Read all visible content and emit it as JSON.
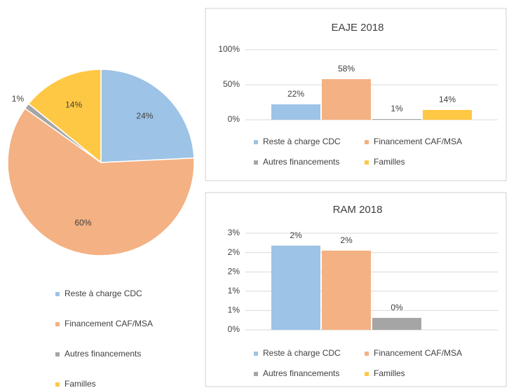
{
  "chart_data": [
    {
      "type": "pie",
      "categories": [
        "Reste à charge CDC",
        "Financement CAF/MSA",
        "Autres financements",
        "Familles"
      ],
      "values": [
        24,
        60,
        1,
        14
      ],
      "value_labels": [
        "24%",
        "60%",
        "1%",
        "14%"
      ],
      "colors": [
        "#9dc3e6",
        "#f4b183",
        "#a5a5a5",
        "#ffc844"
      ],
      "legend": "bottom"
    },
    {
      "type": "bar",
      "title": "EAJE 2018",
      "categories": [
        null
      ],
      "series": [
        {
          "name": "Reste à charge CDC",
          "color": "#9dc3e6",
          "values": [
            22
          ],
          "value_labels": [
            "22%"
          ]
        },
        {
          "name": "Financement CAF/MSA",
          "color": "#f4b183",
          "values": [
            58
          ],
          "value_labels": [
            "58%"
          ]
        },
        {
          "name": "Autres financements",
          "color": "#a5a5a5",
          "values": [
            1
          ],
          "value_labels": [
            "1%"
          ]
        },
        {
          "name": "Familles",
          "color": "#ffc844",
          "values": [
            14
          ],
          "value_labels": [
            "14%"
          ]
        }
      ],
      "ylim": [
        0,
        100
      ],
      "yticks": [
        {
          "value": 0,
          "label": "0%"
        },
        {
          "value": 50,
          "label": "50%"
        },
        {
          "value": 100,
          "label": "100%"
        }
      ],
      "grid": true,
      "legend": "bottom"
    },
    {
      "type": "bar",
      "title": "RAM 2018",
      "categories": [
        null
      ],
      "series": [
        {
          "name": "Reste à charge CDC",
          "color": "#9dc3e6",
          "values": [
            2.18
          ],
          "value_labels": [
            "2%"
          ]
        },
        {
          "name": "Financement CAF/MSA",
          "color": "#f4b183",
          "values": [
            2.05
          ],
          "value_labels": [
            "2%"
          ]
        },
        {
          "name": "Autres financements",
          "color": "#a5a5a5",
          "values": [
            0.31
          ],
          "value_labels": [
            "0%"
          ]
        },
        {
          "name": "Familles",
          "color": "#ffc844",
          "values": [
            0
          ]
        }
      ],
      "ylim": [
        0,
        2.5
      ],
      "yticks": [
        {
          "value": 0,
          "label": "0%"
        },
        {
          "value": 0.5,
          "label": "1%"
        },
        {
          "value": 1,
          "label": "1%"
        },
        {
          "value": 1.5,
          "label": "2%"
        },
        {
          "value": 2,
          "label": "2%"
        },
        {
          "value": 2.5,
          "label": "3%"
        }
      ],
      "grid": true,
      "legend": "bottom"
    }
  ]
}
